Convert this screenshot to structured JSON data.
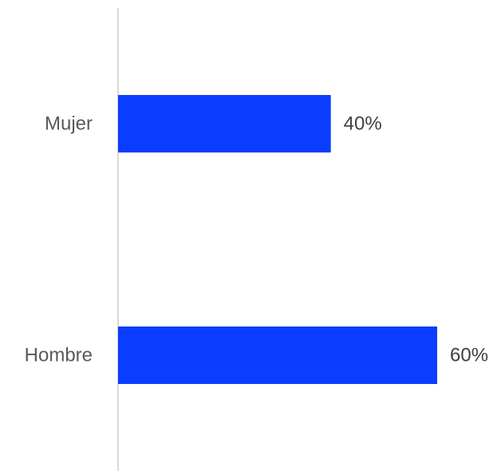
{
  "chart_data": {
    "type": "bar",
    "orientation": "horizontal",
    "categories": [
      "Mujer",
      "Hombre"
    ],
    "values": [
      40,
      60
    ],
    "value_labels": [
      "40%",
      "60%"
    ],
    "unit": "%",
    "title": "",
    "xlabel": "",
    "ylabel": "",
    "xlim": [
      0,
      60
    ],
    "grid": false,
    "legend": "none",
    "colors": {
      "bar": "#0A3DFF",
      "axis": "#D9D9D9",
      "category_text": "#595959",
      "value_text": "#404040"
    }
  }
}
